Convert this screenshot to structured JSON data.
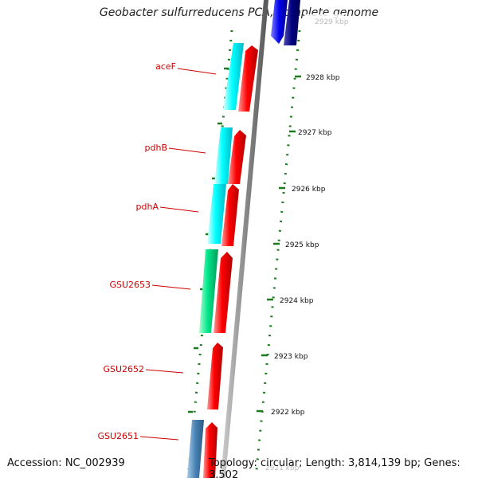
{
  "title": "Geobacter sulfurreducens PCA, complete genome",
  "footer": {
    "accession": "Accession: NC_002939",
    "summary": "Topology: circular; Length: 3,814,139 bp; Genes: 3,502"
  },
  "scale": {
    "unit": "kbp",
    "ticks": [
      "2929 kbp",
      "2928 kbp",
      "2927 kbp",
      "2926 kbp",
      "2925 kbp",
      "2924 kbp",
      "2923 kbp",
      "2922 kbp",
      "2921 kbp"
    ],
    "tick_values_kbp": [
      2929,
      2928,
      2927,
      2926,
      2925,
      2924,
      2923,
      2922,
      2921
    ]
  },
  "gene_labels": [
    "aceF",
    "pdhB",
    "pdhA",
    "GSU2653",
    "GSU2652",
    "GSU2651"
  ],
  "colors": {
    "label": "#cc0000",
    "backbone": "#8c8c8c",
    "tick": "#1e7a1e",
    "cds_reverse": "#ff0000",
    "cds_forward": "#0000ee",
    "cds_navy": "#000080",
    "gene_cyan": "#00ffff",
    "gene_green": "#00ee88",
    "gene_steel": "#4682b4"
  }
}
